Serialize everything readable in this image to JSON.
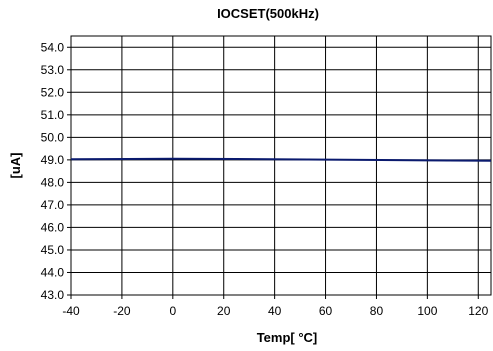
{
  "chart_data": {
    "type": "line",
    "title": "IOCSET(500kHz)",
    "xlabel": "Temp[ °C]",
    "ylabel": "[uA]",
    "xlim": [
      -40,
      125
    ],
    "ylim": [
      43.0,
      54.5
    ],
    "x_ticks": [
      -40,
      -20,
      0,
      20,
      40,
      60,
      80,
      100,
      120
    ],
    "y_ticks": [
      43.0,
      44.0,
      45.0,
      46.0,
      47.0,
      48.0,
      49.0,
      50.0,
      51.0,
      52.0,
      53.0,
      54.0
    ],
    "x_tick_labels": [
      "-40",
      "-20",
      "0",
      "20",
      "40",
      "60",
      "80",
      "100",
      "120"
    ],
    "y_tick_labels": [
      "43.0",
      "44.0",
      "45.0",
      "46.0",
      "47.0",
      "48.0",
      "49.0",
      "50.0",
      "51.0",
      "52.0",
      "53.0",
      "54.0"
    ],
    "grid": true,
    "series": [
      {
        "color": "#0a1a6e",
        "x": [
          -40,
          0,
          25,
          60,
          100,
          125
        ],
        "y": [
          49.03,
          49.05,
          49.04,
          49.01,
          48.98,
          48.96
        ]
      }
    ]
  }
}
